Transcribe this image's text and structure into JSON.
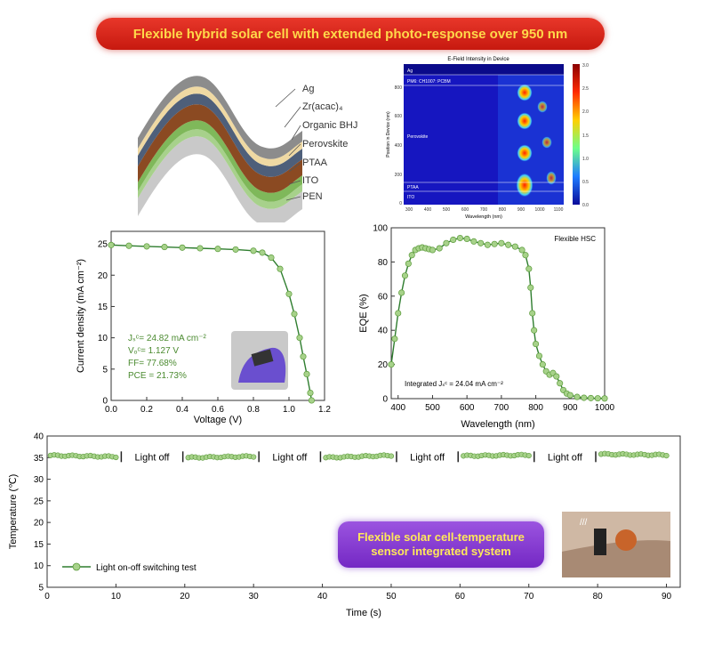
{
  "banner": {
    "title": "Flexible hybrid solar cell with extended photo-response over 950 nm"
  },
  "layers": [
    "Ag",
    "Zr(acac)₄",
    "Organic BHJ",
    "Perovskite",
    "PTAA",
    "ITO",
    "PEN"
  ],
  "efield": {
    "title": "E-Field Intensity in Device",
    "xlabel": "Wavelength (nm)",
    "ylabel": "Position in Device (nm)",
    "xticks": [
      "300",
      "400",
      "500",
      "600",
      "700",
      "800",
      "900",
      "1000",
      "1100"
    ],
    "yticks": [
      "800",
      "600",
      "400",
      "200",
      "0"
    ],
    "cticks": [
      "3.0",
      "2.5",
      "2.0",
      "1.5",
      "1.0",
      "0.5",
      "0.0"
    ],
    "regions": [
      "Ag",
      "PM6: CH1007: PCBM",
      "Perovskite",
      "PTAA",
      "ITO"
    ]
  },
  "chart_data": [
    {
      "type": "line",
      "name": "jv",
      "xlabel": "Voltage (V)",
      "ylabel": "Current density (mA cm⁻²)",
      "xlim": [
        0,
        1.2
      ],
      "ylim": [
        0,
        27
      ],
      "xticks": [
        0.0,
        0.2,
        0.4,
        0.6,
        0.8,
        1.0,
        1.2
      ],
      "yticks": [
        0,
        5,
        10,
        15,
        20,
        25
      ],
      "x": [
        0.0,
        0.1,
        0.2,
        0.3,
        0.4,
        0.5,
        0.6,
        0.7,
        0.8,
        0.85,
        0.9,
        0.95,
        1.0,
        1.03,
        1.06,
        1.08,
        1.1,
        1.12,
        1.127
      ],
      "y": [
        24.82,
        24.7,
        24.6,
        24.5,
        24.4,
        24.3,
        24.2,
        24.1,
        23.9,
        23.6,
        22.8,
        21.0,
        17.0,
        13.8,
        10.0,
        7.0,
        4.2,
        1.2,
        0
      ],
      "annotations": [
        "Jₛᶜ= 24.82 mA cm⁻²",
        "Vₒᶜ= 1.127 V",
        "FF= 77.68%",
        "PCE = 21.73%"
      ]
    },
    {
      "type": "line",
      "name": "eqe",
      "xlabel": "Wavelength (nm)",
      "ylabel": "EQE (%)",
      "xlim": [
        380,
        1000
      ],
      "ylim": [
        0,
        100
      ],
      "xticks": [
        400,
        500,
        600,
        700,
        800,
        900,
        1000
      ],
      "yticks": [
        0,
        20,
        40,
        60,
        80,
        100
      ],
      "x": [
        380,
        390,
        400,
        410,
        420,
        430,
        440,
        450,
        460,
        470,
        480,
        490,
        500,
        520,
        540,
        560,
        580,
        600,
        620,
        640,
        660,
        680,
        700,
        720,
        740,
        760,
        770,
        780,
        785,
        790,
        795,
        800,
        810,
        820,
        830,
        840,
        850,
        860,
        870,
        880,
        890,
        900,
        920,
        940,
        960,
        980,
        1000
      ],
      "y": [
        20,
        35,
        50,
        62,
        72,
        79,
        84,
        87,
        88,
        88.5,
        88,
        87.5,
        87,
        88,
        91,
        93,
        94,
        93.5,
        92,
        91,
        90,
        90.5,
        91,
        90,
        89,
        87,
        84,
        76,
        65,
        50,
        40,
        32,
        25,
        20,
        16,
        14,
        15,
        13,
        9,
        5,
        3,
        2,
        1,
        0.5,
        0.3,
        0.2,
        0.1
      ],
      "legend": "Flexible HSC",
      "annotation": "Integrated Jₛᶜ = 24.04 mA cm⁻²"
    },
    {
      "type": "line",
      "name": "temperature",
      "xlabel": "Time (s)",
      "ylabel": "Temperature (℃)",
      "xlim": [
        0,
        92
      ],
      "ylim": [
        5,
        40
      ],
      "xticks": [
        0,
        10,
        20,
        30,
        40,
        50,
        60,
        70,
        80,
        90
      ],
      "yticks": [
        5,
        10,
        15,
        20,
        25,
        30,
        35,
        40
      ],
      "segments": [
        {
          "x": [
            0.5,
            10
          ],
          "y": [
            35.5,
            35.2
          ]
        },
        {
          "x": [
            20.5,
            30
          ],
          "y": [
            35.0,
            35.3
          ]
        },
        {
          "x": [
            40.5,
            50
          ],
          "y": [
            35.0,
            35.5
          ]
        },
        {
          "x": [
            60.5,
            70
          ],
          "y": [
            35.4,
            35.6
          ]
        },
        {
          "x": [
            80.5,
            90
          ],
          "y": [
            35.8,
            35.6
          ]
        }
      ],
      "light_off_labels": [
        "Light off",
        "Light off",
        "Light off",
        "Light off"
      ],
      "legend": "Light on-off switching test"
    }
  ],
  "callout": {
    "line1": "Flexible solar cell-temperature",
    "line2": "sensor integrated system"
  }
}
